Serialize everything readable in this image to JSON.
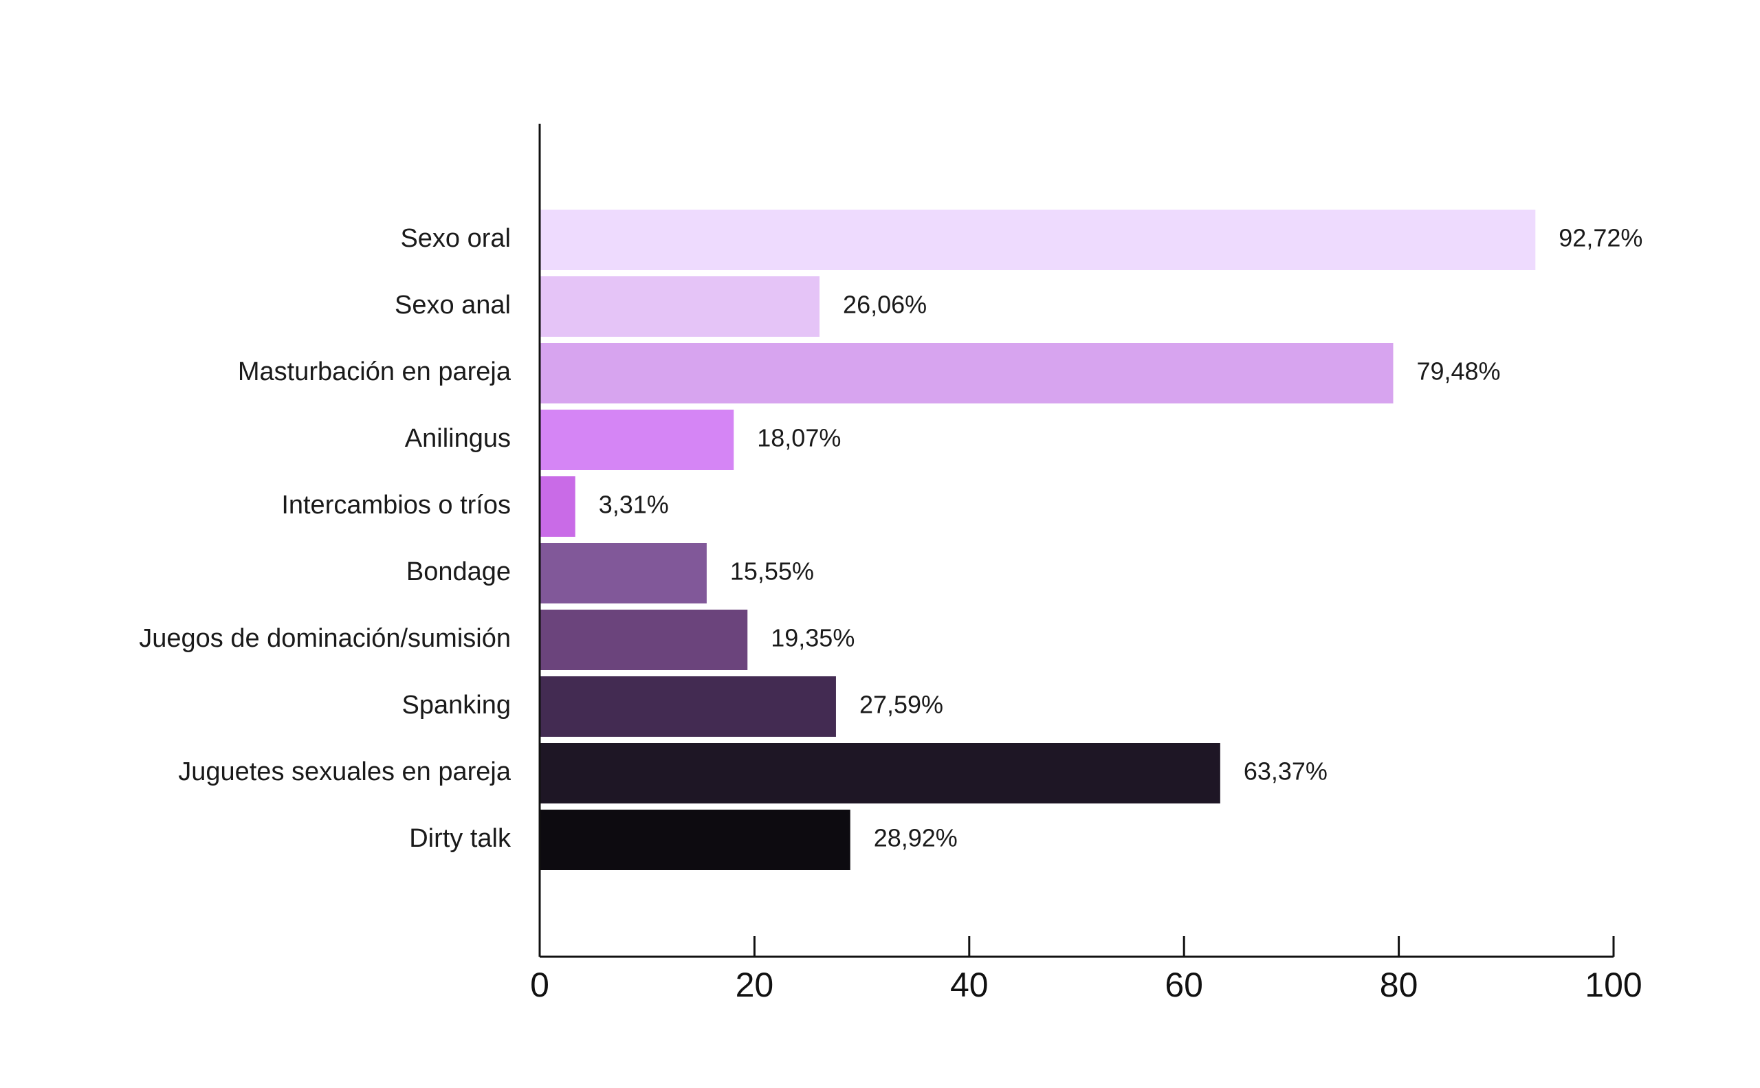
{
  "chart_data": {
    "type": "bar",
    "orientation": "horizontal",
    "title": "",
    "xlabel": "",
    "ylabel": "",
    "xlim": [
      0,
      100
    ],
    "xticks": [
      0,
      20,
      40,
      60,
      80,
      100
    ],
    "xtick_labels": [
      "0",
      "20",
      "40",
      "60",
      "80",
      "100"
    ],
    "grid": false,
    "legend": "none",
    "categories": [
      "Sexo oral",
      "Sexo anal",
      "Masturbación en pareja",
      "Anilingus",
      "Intercambios o tríos",
      "Bondage",
      "Juegos de dominación/sumisión",
      "Spanking",
      "Juguetes sexuales en pareja",
      "Dirty talk"
    ],
    "values": [
      92.72,
      26.06,
      79.48,
      18.07,
      3.31,
      15.55,
      19.35,
      27.59,
      63.37,
      28.92
    ],
    "value_labels": [
      "92,72%",
      "26,06%",
      "79,48%",
      "18,07%",
      "3,31%",
      "15,55%",
      "19,35%",
      "27,59%",
      "63,37%",
      "28,92%"
    ],
    "colors": [
      "#eedbfe",
      "#e5c4f7",
      "#d7a4ef",
      "#d585f5",
      "#c96be7",
      "#815899",
      "#6b447c",
      "#432b52",
      "#1e1625",
      "#0d0b10"
    ]
  }
}
